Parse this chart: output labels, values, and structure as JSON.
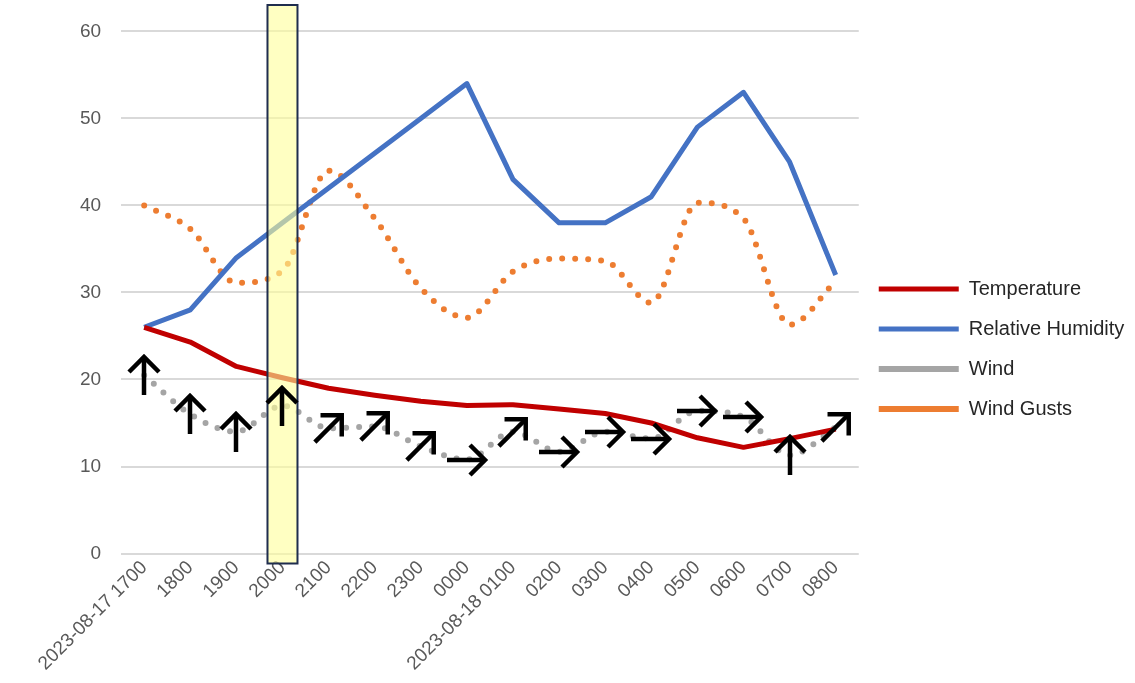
{
  "chart_data": {
    "type": "line",
    "categories": [
      "2023-08-17 1700",
      "1800",
      "1900",
      "2000",
      "2100",
      "2200",
      "2300",
      "0000",
      "2023-08-18 0100",
      "0200",
      "0300",
      "0400",
      "0500",
      "0600",
      "0700",
      "0800"
    ],
    "series": [
      {
        "name": "Temperature",
        "color": "#c00000",
        "line_style": "solid",
        "values": [
          26,
          24.3,
          21.5,
          20.2,
          19,
          18.2,
          17.5,
          17,
          17.1,
          16.6,
          16.1,
          15,
          13.3,
          12.2,
          13.2,
          14.3
        ]
      },
      {
        "name": "Relative Humidity",
        "color": "#4472c4",
        "line_style": "solid",
        "values": [
          26,
          28,
          34,
          38,
          42,
          46,
          50,
          54,
          43,
          38,
          38,
          41,
          49,
          53,
          45,
          32
        ]
      },
      {
        "name": "Wind",
        "color": "#a5a5a5",
        "line_style": "dotted",
        "values": [
          20.5,
          16,
          14,
          17,
          14.4,
          14.6,
          12.3,
          10.8,
          14,
          11.7,
          14,
          13.2,
          16.4,
          15.7,
          11.3,
          14.5
        ]
      },
      {
        "name": "Wind Gusts",
        "color": "#ed7d31",
        "line_style": "dotted",
        "values": [
          40,
          37.3,
          31.1,
          32.5,
          44,
          38.5,
          30.5,
          27.1,
          32.4,
          33.9,
          33.6,
          28.8,
          40.3,
          38.5,
          26.3,
          31.3
        ]
      }
    ],
    "ylim": [
      0,
      60
    ],
    "yticks": [
      0,
      10,
      20,
      30,
      40,
      50,
      60
    ],
    "grid": "y",
    "legend": "right",
    "marker": "none",
    "bands": [
      {
        "axis": "x",
        "from": "2000",
        "to": "2000",
        "color": "#ffff99"
      }
    ]
  }
}
